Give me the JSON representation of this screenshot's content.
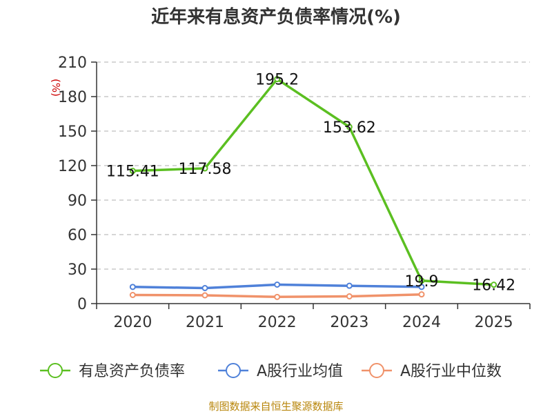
{
  "chart_data": {
    "type": "line",
    "title": "近年来有息资产负债率情况(%)",
    "ylabel": "(%)",
    "categories": [
      "2020",
      "2021",
      "2022",
      "2023",
      "2024",
      "2025"
    ],
    "yticks": [
      0,
      30,
      60,
      90,
      120,
      150,
      180,
      210
    ],
    "ylim": [
      0,
      210
    ],
    "grid": true,
    "legend_position": "bottom",
    "series": [
      {
        "name": "有息资产负债率",
        "color": "#5bbf21",
        "values": [
          115.41,
          117.58,
          195.2,
          153.62,
          19.9,
          16.42
        ],
        "labels": [
          "115.41",
          "117.58",
          "195.2",
          "153.62",
          "19.9",
          "16.42"
        ]
      },
      {
        "name": "A股行业均值",
        "color": "#4f81d9",
        "values": [
          14.5,
          13.5,
          16.5,
          15.5,
          14.5,
          null
        ]
      },
      {
        "name": "A股行业中位数",
        "color": "#f0926a",
        "values": [
          7.5,
          7.2,
          5.8,
          6.3,
          8.0,
          null
        ]
      }
    ]
  },
  "source_text": "制图数据来自恒生聚源数据库"
}
